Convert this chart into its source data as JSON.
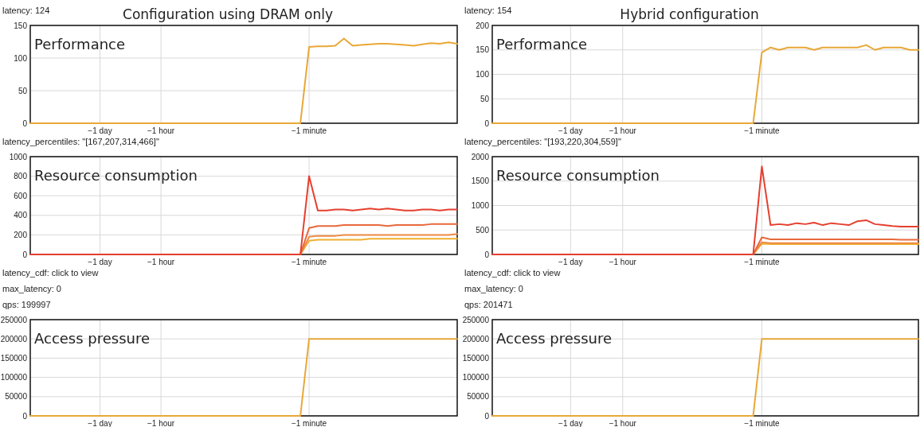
{
  "chart_data": [
    {
      "type": "line",
      "title": "Performance",
      "subtitle": "Configuration using DRAM only",
      "annotations": [
        "latency: 124"
      ],
      "grid": true,
      "categories": [
        null,
        null,
        null,
        null,
        null,
        null,
        null,
        null,
        "−1 day",
        null,
        null,
        null,
        null,
        null,
        null,
        "−1 hour",
        null,
        null,
        null,
        null,
        null,
        null,
        null,
        null,
        null,
        null,
        null,
        null,
        null,
        null,
        null,
        null,
        "−1 minute",
        null,
        null,
        null,
        null,
        null,
        null,
        null,
        null,
        null,
        null,
        null,
        null,
        null,
        null,
        null,
        null,
        null
      ],
      "ylim": [
        0,
        150
      ],
      "yticks": [
        0,
        50,
        100,
        150
      ],
      "series": [
        {
          "color": "#e8a838",
          "values": [
            0,
            0,
            0,
            0,
            0,
            0,
            0,
            0,
            0,
            0,
            0,
            0,
            0,
            0,
            0,
            0,
            0,
            0,
            0,
            0,
            0,
            0,
            0,
            0,
            0,
            0,
            0,
            0,
            0,
            0,
            0,
            0,
            117,
            118,
            118,
            119,
            130,
            119,
            120,
            121,
            122,
            122,
            121,
            120,
            119,
            121,
            123,
            122,
            124,
            122
          ]
        }
      ]
    },
    {
      "type": "line",
      "title": "Resource consumption",
      "annotations": [
        "latency_percentiles: \"[167,207,314,466]\""
      ],
      "grid": true,
      "categories": [
        null,
        null,
        null,
        null,
        null,
        null,
        null,
        null,
        "−1 day",
        null,
        null,
        null,
        null,
        null,
        null,
        "−1 hour",
        null,
        null,
        null,
        null,
        null,
        null,
        null,
        null,
        null,
        null,
        null,
        null,
        null,
        null,
        null,
        null,
        "−1 minute",
        null,
        null,
        null,
        null,
        null,
        null,
        null,
        null,
        null,
        null,
        null,
        null,
        null,
        null,
        null,
        null,
        null
      ],
      "ylim": [
        0,
        1000
      ],
      "yticks": [
        0,
        200,
        400,
        600,
        800,
        1000
      ],
      "series": [
        {
          "color": "#f0b030",
          "values": [
            null,
            null,
            null,
            null,
            null,
            null,
            null,
            null,
            null,
            null,
            null,
            null,
            null,
            null,
            null,
            null,
            null,
            null,
            null,
            null,
            null,
            null,
            null,
            null,
            null,
            null,
            null,
            null,
            null,
            null,
            null,
            0,
            140,
            150,
            150,
            150,
            150,
            150,
            150,
            160,
            160,
            160,
            160,
            160,
            160,
            160,
            160,
            160,
            160,
            160
          ]
        },
        {
          "color": "#ee8a40",
          "values": [
            null,
            null,
            null,
            null,
            null,
            null,
            null,
            null,
            null,
            null,
            null,
            null,
            null,
            null,
            null,
            null,
            null,
            null,
            null,
            null,
            null,
            null,
            null,
            null,
            null,
            null,
            null,
            null,
            null,
            null,
            null,
            0,
            180,
            190,
            190,
            190,
            200,
            200,
            200,
            200,
            200,
            200,
            200,
            200,
            200,
            200,
            200,
            200,
            200,
            210
          ]
        },
        {
          "color": "#e8683c",
          "values": [
            null,
            null,
            null,
            null,
            null,
            null,
            null,
            null,
            null,
            null,
            null,
            null,
            null,
            null,
            null,
            null,
            null,
            null,
            null,
            null,
            null,
            null,
            null,
            null,
            null,
            null,
            null,
            null,
            null,
            null,
            null,
            0,
            270,
            290,
            290,
            290,
            300,
            300,
            300,
            300,
            300,
            290,
            300,
            300,
            300,
            300,
            310,
            310,
            310,
            310
          ]
        },
        {
          "color": "#e53f2e",
          "values": [
            0,
            0,
            0,
            0,
            0,
            0,
            0,
            0,
            0,
            0,
            0,
            0,
            0,
            0,
            0,
            0,
            0,
            0,
            0,
            0,
            0,
            0,
            0,
            0,
            0,
            0,
            0,
            0,
            0,
            0,
            0,
            0,
            800,
            450,
            450,
            460,
            460,
            450,
            460,
            470,
            460,
            470,
            460,
            450,
            450,
            460,
            460,
            450,
            460,
            460
          ]
        }
      ]
    },
    {
      "type": "line",
      "title": "Access pressure",
      "annotations": [
        "latency_cdf: click to view",
        "max_latency: 0",
        "qps: 199997"
      ],
      "grid": true,
      "categories": [
        null,
        null,
        null,
        null,
        null,
        null,
        null,
        null,
        "−1 day",
        null,
        null,
        null,
        null,
        null,
        null,
        "−1 hour",
        null,
        null,
        null,
        null,
        null,
        null,
        null,
        null,
        null,
        null,
        null,
        null,
        null,
        null,
        null,
        null,
        "−1 minute",
        null,
        null,
        null,
        null,
        null,
        null,
        null,
        null,
        null,
        null,
        null,
        null,
        null,
        null,
        null,
        null,
        null
      ],
      "ylim": [
        0,
        250000
      ],
      "yticks": [
        0,
        50000,
        100000,
        150000,
        200000,
        250000
      ],
      "series": [
        {
          "color": "#e8a838",
          "values": [
            0,
            0,
            0,
            0,
            0,
            0,
            0,
            0,
            0,
            0,
            0,
            0,
            0,
            0,
            0,
            0,
            0,
            0,
            0,
            0,
            0,
            0,
            0,
            0,
            0,
            0,
            0,
            0,
            0,
            0,
            0,
            0,
            200000,
            200000,
            200000,
            200000,
            200000,
            200000,
            200000,
            200000,
            200000,
            200000,
            200000,
            200000,
            200000,
            200000,
            200000,
            200000,
            200000,
            200000
          ]
        }
      ]
    },
    {
      "type": "line",
      "title": "Performance",
      "subtitle": "Hybrid configuration",
      "annotations": [
        "latency: 154"
      ],
      "grid": true,
      "categories": [
        null,
        null,
        null,
        null,
        null,
        null,
        null,
        null,
        null,
        "−1 day",
        null,
        null,
        null,
        null,
        null,
        "−1 hour",
        null,
        null,
        null,
        null,
        null,
        null,
        null,
        null,
        null,
        null,
        null,
        null,
        null,
        null,
        null,
        "−1 minute",
        null,
        null,
        null,
        null,
        null,
        null,
        null,
        null,
        null,
        null,
        null,
        null,
        null,
        null,
        null,
        null,
        null,
        null
      ],
      "ylim": [
        0,
        200
      ],
      "yticks": [
        0,
        50,
        100,
        150,
        200
      ],
      "series": [
        {
          "color": "#e8a838",
          "values": [
            0,
            0,
            0,
            0,
            0,
            0,
            0,
            0,
            0,
            0,
            0,
            0,
            0,
            0,
            0,
            0,
            0,
            0,
            0,
            0,
            0,
            0,
            0,
            0,
            0,
            0,
            0,
            0,
            0,
            0,
            0,
            145,
            155,
            150,
            155,
            155,
            155,
            150,
            155,
            155,
            155,
            155,
            155,
            160,
            150,
            155,
            155,
            155,
            150,
            150
          ]
        }
      ]
    },
    {
      "type": "line",
      "title": "Resource consumption",
      "annotations": [
        "latency_percentiles: \"[193,220,304,559]\""
      ],
      "grid": true,
      "categories": [
        null,
        null,
        null,
        null,
        null,
        null,
        null,
        null,
        null,
        "−1 day",
        null,
        null,
        null,
        null,
        null,
        "−1 hour",
        null,
        null,
        null,
        null,
        null,
        null,
        null,
        null,
        null,
        null,
        null,
        null,
        null,
        null,
        null,
        "−1 minute",
        null,
        null,
        null,
        null,
        null,
        null,
        null,
        null,
        null,
        null,
        null,
        null,
        null,
        null,
        null,
        null,
        null,
        null
      ],
      "ylim": [
        0,
        2000
      ],
      "yticks": [
        0,
        500,
        1000,
        1500,
        2000
      ],
      "series": [
        {
          "color": "#f0b030",
          "values": [
            null,
            null,
            null,
            null,
            null,
            null,
            null,
            null,
            null,
            null,
            null,
            null,
            null,
            null,
            null,
            null,
            null,
            null,
            null,
            null,
            null,
            null,
            null,
            null,
            null,
            null,
            null,
            null,
            null,
            null,
            0,
            220,
            210,
            210,
            210,
            210,
            210,
            210,
            210,
            210,
            210,
            210,
            210,
            210,
            210,
            210,
            210,
            210,
            210,
            210
          ]
        },
        {
          "color": "#ee8a40",
          "values": [
            null,
            null,
            null,
            null,
            null,
            null,
            null,
            null,
            null,
            null,
            null,
            null,
            null,
            null,
            null,
            null,
            null,
            null,
            null,
            null,
            null,
            null,
            null,
            null,
            null,
            null,
            null,
            null,
            null,
            null,
            0,
            250,
            230,
            230,
            230,
            230,
            230,
            230,
            230,
            230,
            230,
            230,
            230,
            230,
            230,
            230,
            230,
            230,
            230,
            230
          ]
        },
        {
          "color": "#e8683c",
          "values": [
            null,
            null,
            null,
            null,
            null,
            null,
            null,
            null,
            null,
            null,
            null,
            null,
            null,
            null,
            null,
            null,
            null,
            null,
            null,
            null,
            null,
            null,
            null,
            null,
            null,
            null,
            null,
            null,
            null,
            null,
            0,
            350,
            310,
            310,
            310,
            310,
            310,
            310,
            310,
            310,
            310,
            310,
            310,
            310,
            310,
            310,
            310,
            300,
            300,
            300
          ]
        },
        {
          "color": "#e53f2e",
          "values": [
            0,
            0,
            0,
            0,
            0,
            0,
            0,
            0,
            0,
            0,
            0,
            0,
            0,
            0,
            0,
            0,
            0,
            0,
            0,
            0,
            0,
            0,
            0,
            0,
            0,
            0,
            0,
            0,
            0,
            0,
            0,
            1800,
            600,
            620,
            600,
            640,
            620,
            650,
            600,
            640,
            620,
            600,
            680,
            700,
            620,
            600,
            580,
            570,
            570,
            570
          ]
        }
      ]
    },
    {
      "type": "line",
      "title": "Access pressure",
      "annotations": [
        "latency_cdf: click to view",
        "max_latency: 0",
        "qps: 201471"
      ],
      "grid": true,
      "categories": [
        null,
        null,
        null,
        null,
        null,
        null,
        null,
        null,
        null,
        "−1 day",
        null,
        null,
        null,
        null,
        null,
        "−1 hour",
        null,
        null,
        null,
        null,
        null,
        null,
        null,
        null,
        null,
        null,
        null,
        null,
        null,
        null,
        null,
        "−1 minute",
        null,
        null,
        null,
        null,
        null,
        null,
        null,
        null,
        null,
        null,
        null,
        null,
        null,
        null,
        null,
        null,
        null,
        null
      ],
      "ylim": [
        0,
        250000
      ],
      "yticks": [
        0,
        50000,
        100000,
        150000,
        200000,
        250000
      ],
      "series": [
        {
          "color": "#e8a838",
          "values": [
            0,
            0,
            0,
            0,
            0,
            0,
            0,
            0,
            0,
            0,
            0,
            0,
            0,
            0,
            0,
            0,
            0,
            0,
            0,
            0,
            0,
            0,
            0,
            0,
            0,
            0,
            0,
            0,
            0,
            0,
            0,
            200000,
            200000,
            200000,
            200000,
            200000,
            200000,
            200000,
            200000,
            200000,
            200000,
            200000,
            200000,
            200000,
            200000,
            200000,
            200000,
            200000,
            200000,
            200000
          ]
        }
      ]
    }
  ]
}
